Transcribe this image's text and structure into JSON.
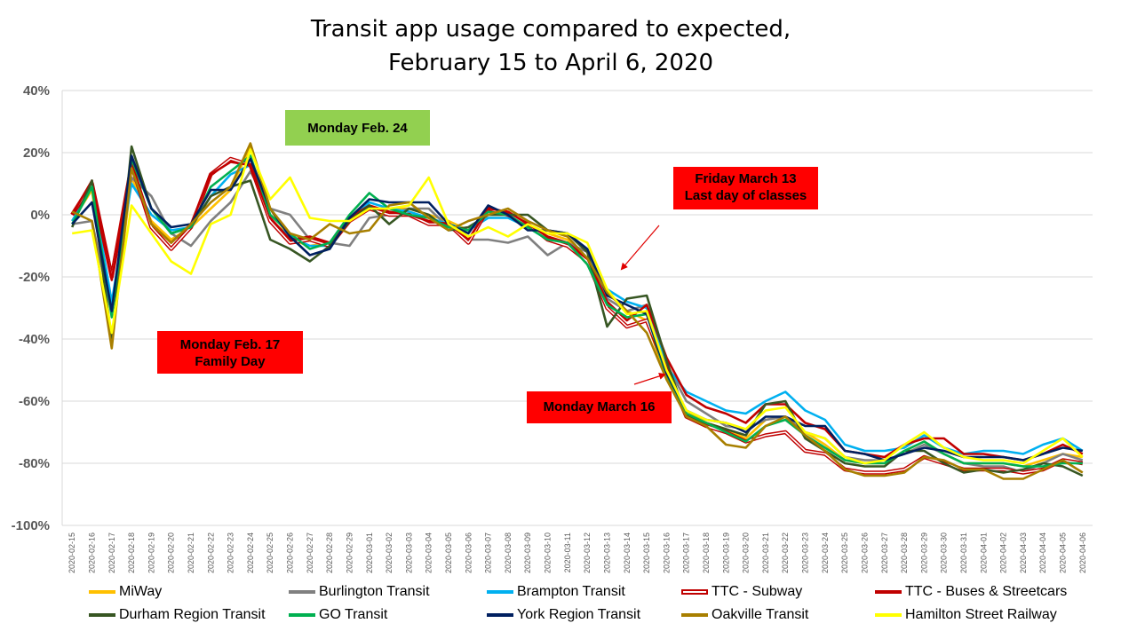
{
  "chart_data": {
    "type": "line",
    "title_line1": "Transit app usage compared to expected,",
    "title_line2": "February 15 to April 6, 2020",
    "xlabel": "",
    "ylabel": "",
    "ylim": [
      -100,
      40
    ],
    "yticks": [
      "40%",
      "20%",
      "0%",
      "-20%",
      "-40%",
      "-60%",
      "-80%",
      "-100%"
    ],
    "grid": true,
    "legend_position": "bottom",
    "x": [
      "2020-02-15",
      "2020-02-16",
      "2020-02-17",
      "2020-02-18",
      "2020-02-19",
      "2020-02-20",
      "2020-02-21",
      "2020-02-22",
      "2020-02-23",
      "2020-02-24",
      "2020-02-25",
      "2020-02-26",
      "2020-02-27",
      "2020-02-28",
      "2020-02-29",
      "2020-03-01",
      "2020-03-02",
      "2020-03-03",
      "2020-03-04",
      "2020-03-05",
      "2020-03-06",
      "2020-03-07",
      "2020-03-08",
      "2020-03-09",
      "2020-03-10",
      "2020-03-11",
      "2020-03-12",
      "2020-03-13",
      "2020-03-14",
      "2020-03-15",
      "2020-03-16",
      "2020-03-17",
      "2020-03-18",
      "2020-03-19",
      "2020-03-20",
      "2020-03-21",
      "2020-03-22",
      "2020-03-23",
      "2020-03-24",
      "2020-03-25",
      "2020-03-26",
      "2020-03-27",
      "2020-03-28",
      "2020-03-29",
      "2020-03-30",
      "2020-03-31",
      "2020-04-01",
      "2020-04-02",
      "2020-04-03",
      "2020-04-04",
      "2020-04-05",
      "2020-04-06"
    ],
    "series": [
      {
        "name": "MiWay",
        "color": "#ffc000",
        "style": "solid",
        "values": [
          -2,
          8,
          -40,
          12,
          -2,
          -8,
          -4,
          2,
          8,
          22,
          2,
          -8,
          -10,
          -9,
          -2,
          2,
          2,
          2,
          0,
          -2,
          -5,
          0,
          0,
          -3,
          -6,
          -8,
          -14,
          -25,
          -31,
          -34,
          -53,
          -63,
          -67,
          -69,
          -72,
          -66,
          -65,
          -70,
          -74,
          -79,
          -80,
          -80,
          -76,
          -73,
          -77,
          -80,
          -80,
          -80,
          -81,
          -79,
          -77,
          -78
        ]
      },
      {
        "name": "Burlington Transit",
        "color": "#808080",
        "style": "solid",
        "values": [
          -3,
          -2,
          -32,
          12,
          6,
          -6,
          -10,
          -2,
          4,
          14,
          2,
          0,
          -8,
          -9,
          -10,
          -1,
          0,
          2,
          2,
          -4,
          -8,
          -8,
          -9,
          -7,
          -13,
          -9,
          -12,
          -27,
          -31,
          -29,
          -48,
          -60,
          -64,
          -68,
          -69,
          -66,
          -65,
          -70,
          -72,
          -78,
          -79,
          -79,
          -77,
          -74,
          -77,
          -80,
          -81,
          -81,
          -83,
          -80,
          -77,
          -79
        ]
      },
      {
        "name": "Brampton Transit",
        "color": "#00b0f0",
        "style": "solid",
        "values": [
          -2,
          9,
          -28,
          10,
          0,
          -5,
          -4,
          6,
          13,
          16,
          -2,
          -7,
          -10,
          -10,
          -2,
          4,
          2,
          1,
          -1,
          -3,
          -5,
          -1,
          -1,
          -4,
          -8,
          -9,
          -14,
          -24,
          -28,
          -30,
          -49,
          -57,
          -60,
          -63,
          -64,
          -60,
          -57,
          -63,
          -66,
          -74,
          -76,
          -76,
          -75,
          -71,
          -75,
          -77,
          -76,
          -76,
          -77,
          -74,
          -72,
          -76
        ]
      },
      {
        "name": "TTC - Subway",
        "color": "#c00000",
        "style": "double",
        "values": [
          0,
          10,
          -20,
          16,
          -4,
          -11,
          -4,
          13,
          18,
          16,
          -2,
          -9,
          -8,
          -10,
          -2,
          2,
          0,
          0,
          -3,
          -3,
          -9,
          2,
          0,
          -3,
          -8,
          -10,
          -15,
          -30,
          -36,
          -34,
          -50,
          -65,
          -68,
          -70,
          -73,
          -71,
          -70,
          -76,
          -77,
          -82,
          -83,
          -83,
          -82,
          -78,
          -80,
          -82,
          -82,
          -82,
          -83,
          -82,
          -79,
          -80
        ]
      },
      {
        "name": "TTC - Buses & Streetcars",
        "color": "#c00000",
        "style": "solid",
        "values": [
          0,
          11,
          -21,
          17,
          -3,
          -9,
          -3,
          13,
          17,
          16,
          -1,
          -8,
          -7,
          -9,
          -1,
          3,
          1,
          0,
          -2,
          -3,
          -8,
          2,
          1,
          -3,
          -7,
          -9,
          -14,
          -28,
          -34,
          -29,
          -46,
          -58,
          -62,
          -64,
          -67,
          -61,
          -61,
          -67,
          -69,
          -76,
          -77,
          -78,
          -74,
          -72,
          -72,
          -77,
          -77,
          -78,
          -79,
          -77,
          -74,
          -77
        ]
      },
      {
        "name": "Durham Region Transit",
        "color": "#375623",
        "style": "solid",
        "values": [
          -4,
          11,
          -42,
          22,
          2,
          -6,
          -4,
          6,
          9,
          11,
          -8,
          -11,
          -15,
          -10,
          -2,
          3,
          -3,
          2,
          0,
          -5,
          -4,
          0,
          0,
          0,
          -5,
          -6,
          -12,
          -36,
          -27,
          -26,
          -47,
          -65,
          -67,
          -69,
          -71,
          -61,
          -60,
          -72,
          -76,
          -80,
          -81,
          -81,
          -76,
          -76,
          -80,
          -83,
          -82,
          -83,
          -82,
          -80,
          -81,
          -84
        ]
      },
      {
        "name": "GO Transit",
        "color": "#00b050",
        "style": "solid",
        "values": [
          -3,
          9,
          -33,
          18,
          2,
          -6,
          -4,
          9,
          14,
          19,
          0,
          -6,
          -11,
          -9,
          0,
          7,
          2,
          0,
          -1,
          -4,
          -5,
          1,
          0,
          -4,
          -8,
          -9,
          -16,
          -29,
          -33,
          -32,
          -52,
          -64,
          -67,
          -70,
          -73,
          -68,
          -66,
          -71,
          -75,
          -79,
          -80,
          -80,
          -76,
          -73,
          -77,
          -80,
          -80,
          -80,
          -81,
          -81,
          -80,
          -80
        ]
      },
      {
        "name": "York Region Transit",
        "color": "#002060",
        "style": "solid",
        "values": [
          -3,
          4,
          -31,
          19,
          2,
          -4,
          -3,
          8,
          8,
          18,
          2,
          -7,
          -13,
          -11,
          -1,
          5,
          4,
          4,
          4,
          -3,
          -6,
          3,
          0,
          -5,
          -5,
          -6,
          -11,
          -26,
          -29,
          -32,
          -51,
          -63,
          -66,
          -67,
          -70,
          -65,
          -65,
          -68,
          -68,
          -76,
          -77,
          -79,
          -77,
          -75,
          -76,
          -78,
          -78,
          -78,
          -79,
          -77,
          -75,
          -76
        ]
      },
      {
        "name": "Oakville Transit",
        "color": "#a87f00",
        "style": "solid",
        "values": [
          1,
          -2,
          -43,
          15,
          -3,
          -9,
          -3,
          4,
          9,
          23,
          2,
          -6,
          -8,
          -3,
          -6,
          -5,
          3,
          4,
          -1,
          -5,
          -2,
          0,
          2,
          -2,
          -5,
          -7,
          -14,
          -25,
          -31,
          -38,
          -53,
          -65,
          -68,
          -74,
          -75,
          -68,
          -65,
          -71,
          -76,
          -82,
          -84,
          -84,
          -83,
          -78,
          -79,
          -82,
          -82,
          -85,
          -85,
          -82,
          -79,
          -83
        ]
      },
      {
        "name": "Hamilton Street Railway",
        "color": "#ffff00",
        "style": "solid",
        "values": [
          -6,
          -5,
          -38,
          3,
          -6,
          -15,
          -19,
          -3,
          0,
          21,
          5,
          12,
          -1,
          -2,
          -2,
          2,
          2,
          3,
          12,
          -3,
          -7,
          -4,
          -7,
          -3,
          -6,
          -6,
          -9,
          -24,
          -32,
          -31,
          -50,
          -63,
          -66,
          -67,
          -69,
          -63,
          -62,
          -70,
          -72,
          -78,
          -80,
          -79,
          -74,
          -70,
          -75,
          -78,
          -79,
          -79,
          -80,
          -76,
          -72,
          -78
        ]
      }
    ],
    "annotations": [
      {
        "text_line1": "Monday Feb. 24",
        "text_line2": ""
      },
      {
        "text_line1": "Friday March 13",
        "text_line2": "Last day of classes"
      },
      {
        "text_line1": "Monday Feb. 17",
        "text_line2": "Family Day"
      },
      {
        "text_line1": "Monday March 16",
        "text_line2": ""
      }
    ]
  }
}
